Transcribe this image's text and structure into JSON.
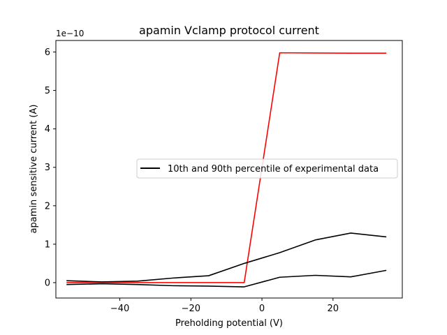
{
  "chart_data": {
    "type": "line",
    "title": "apamin Vclamp protocol current",
    "xlabel": "Preholding potential (V)",
    "ylabel": "apamin sensitive current (A)",
    "y_offset_text": "1e−10",
    "xlim": [
      -58,
      39.5
    ],
    "ylim": [
      -0.4,
      6.3
    ],
    "x_ticks": [
      -40,
      -20,
      0,
      20
    ],
    "x_tick_labels": [
      "−40",
      "−20",
      "0",
      "20"
    ],
    "y_ticks": [
      0,
      1,
      2,
      3,
      4,
      5,
      6
    ],
    "y_tick_labels": [
      "0",
      "1",
      "2",
      "3",
      "4",
      "5",
      "6"
    ],
    "legend": {
      "placement": "center-right",
      "entries": [
        {
          "label": "10th and 90th percentile of experimental data",
          "color": "#000000"
        }
      ]
    },
    "grid": false,
    "series": [
      {
        "color": "#ff0000",
        "x": [
          -55,
          -45,
          -35,
          -25,
          -15,
          -5,
          5,
          15,
          25,
          35
        ],
        "y": [
          0.0,
          0.0,
          0.0,
          0.0,
          0.0,
          0.0,
          5.98,
          5.975,
          5.97,
          5.97
        ]
      },
      {
        "name": "10th and 90th percentile of experimental data",
        "color": "#000000",
        "x": [
          -55,
          -45,
          -35,
          -25,
          -15,
          -5,
          5,
          15,
          25,
          35
        ],
        "y": [
          0.05,
          0.02,
          0.04,
          0.12,
          0.18,
          0.5,
          0.78,
          1.11,
          1.29,
          1.19
        ]
      },
      {
        "color": "#000000",
        "x": [
          -55,
          -45,
          -35,
          -25,
          -15,
          -5,
          5,
          15,
          25,
          35
        ],
        "y": [
          -0.05,
          -0.03,
          -0.05,
          -0.08,
          -0.09,
          -0.11,
          0.14,
          0.19,
          0.15,
          0.32
        ]
      }
    ]
  }
}
